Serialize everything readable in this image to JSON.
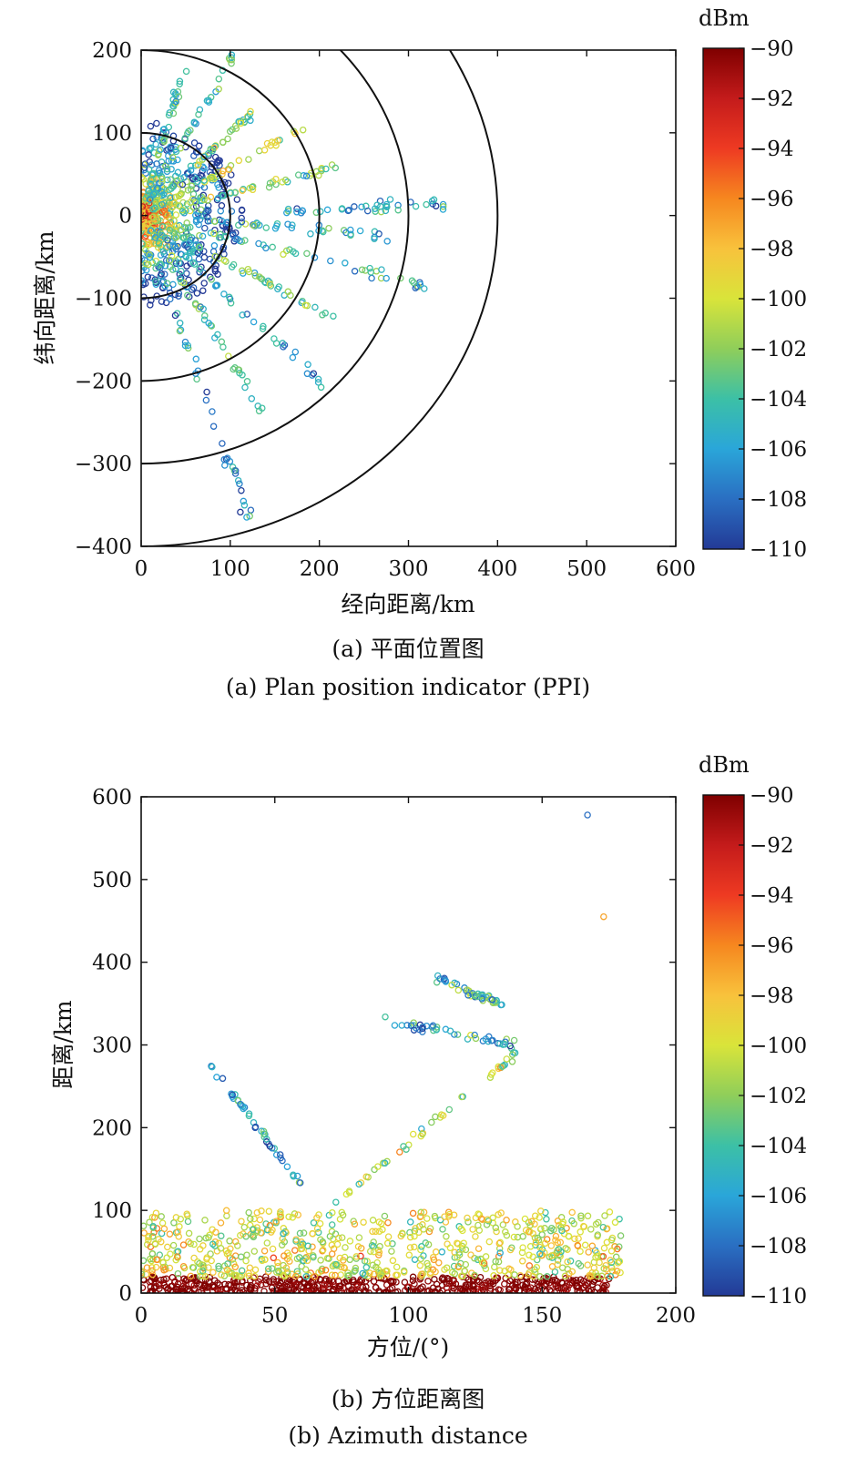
{
  "figure": {
    "caption_a_cn": "(a) 平面位置图",
    "caption_a_en": "(a) Plan position indicator (PPI)",
    "caption_b_cn": "(b) 方位距离图",
    "caption_b_en": "(b) Azimuth distance"
  },
  "colormap": [
    "#7f0000",
    "#c41b1b",
    "#ee3a22",
    "#f6871f",
    "#f8c23c",
    "#d9e43a",
    "#8fce5a",
    "#3cc0a6",
    "#2aa6d9",
    "#2a6fc2",
    "#233a96"
  ],
  "chart_data": [
    {
      "type": "scatter",
      "title": "",
      "xlabel": "经向距离/km",
      "ylabel": "纬向距离/km",
      "xlim": [
        0,
        600
      ],
      "ylim": [
        -400,
        200
      ],
      "xticks": [
        "0",
        "100",
        "200",
        "300",
        "400",
        "500",
        "600"
      ],
      "yticks": [
        "200",
        "100",
        "0",
        "−100",
        "−200",
        "−300",
        "−400"
      ],
      "range_rings_km": [
        100,
        200,
        300,
        400
      ],
      "colorbar": {
        "label": "dBm",
        "range": [
          -110,
          -90
        ],
        "ticks": [
          "−90",
          "−92",
          "−94",
          "−96",
          "−98",
          "−100",
          "−102",
          "−104",
          "−106",
          "−108",
          "−110"
        ]
      },
      "approx_spokes": [
        {
          "azimuth_deg": 15,
          "r_km": [
            20,
            190
          ],
          "dBm": -104
        },
        {
          "azimuth_deg": 28,
          "r_km": [
            10,
            220
          ],
          "dBm": -105
        },
        {
          "azimuth_deg": 45,
          "r_km": [
            20,
            180
          ],
          "dBm": -103
        },
        {
          "azimuth_deg": 60,
          "r_km": [
            15,
            210
          ],
          "dBm": -101
        },
        {
          "azimuth_deg": 75,
          "r_km": [
            40,
            230
          ],
          "dBm": -102
        },
        {
          "azimuth_deg": 88,
          "r_km": [
            150,
            340
          ],
          "dBm": -106
        },
        {
          "azimuth_deg": 95,
          "r_km": [
            60,
            280
          ],
          "dBm": -105
        },
        {
          "azimuth_deg": 105,
          "r_km": [
            80,
            330
          ],
          "dBm": -104
        },
        {
          "azimuth_deg": 120,
          "r_km": [
            20,
            250
          ],
          "dBm": -103
        },
        {
          "azimuth_deg": 135,
          "r_km": [
            20,
            300
          ],
          "dBm": -106
        },
        {
          "azimuth_deg": 150,
          "r_km": [
            20,
            280
          ],
          "dBm": -104
        },
        {
          "azimuth_deg": 162,
          "r_km": [
            50,
            390
          ],
          "dBm": -107
        }
      ]
    },
    {
      "type": "scatter",
      "title": "",
      "xlabel": "方位/(°)",
      "ylabel": "距离/km",
      "xlim": [
        0,
        200
      ],
      "ylim": [
        0,
        600
      ],
      "xticks": [
        "0",
        "50",
        "100",
        "150",
        "200"
      ],
      "yticks": [
        "600",
        "500",
        "400",
        "300",
        "200",
        "100",
        "0"
      ],
      "colorbar": {
        "label": "dBm",
        "range": [
          -110,
          -90
        ],
        "ticks": [
          "−90",
          "−92",
          "−94",
          "−96",
          "−98",
          "−100",
          "−102",
          "−104",
          "−106",
          "−108",
          "−110"
        ]
      },
      "approx_features": [
        {
          "feature": "near-range band",
          "azimuth_deg": [
            0,
            175
          ],
          "r_km": [
            0,
            20
          ],
          "dBm": -90
        },
        {
          "feature": "clutter band",
          "azimuth_deg": [
            0,
            180
          ],
          "r_km": [
            20,
            100
          ],
          "dBm": -100
        },
        {
          "feature": "arc",
          "azimuth_deg": [
            25,
            60
          ],
          "r_km": [
            280,
            130
          ],
          "dBm": -106
        },
        {
          "feature": "arc",
          "azimuth_deg": [
            70,
            140
          ],
          "r_km": [
            100,
            290
          ],
          "dBm": -101
        },
        {
          "feature": "arc",
          "azimuth_deg": [
            91,
            140
          ],
          "r_km": [
            330,
            300
          ],
          "dBm": -106
        },
        {
          "feature": "arc",
          "azimuth_deg": [
            110,
            135
          ],
          "r_km": [
            380,
            350
          ],
          "dBm": -105
        },
        {
          "feature": "isolated",
          "azimuth_deg": 167,
          "r_km": 578,
          "dBm": -108
        },
        {
          "feature": "isolated",
          "azimuth_deg": 173,
          "r_km": 455,
          "dBm": -97
        }
      ]
    }
  ]
}
